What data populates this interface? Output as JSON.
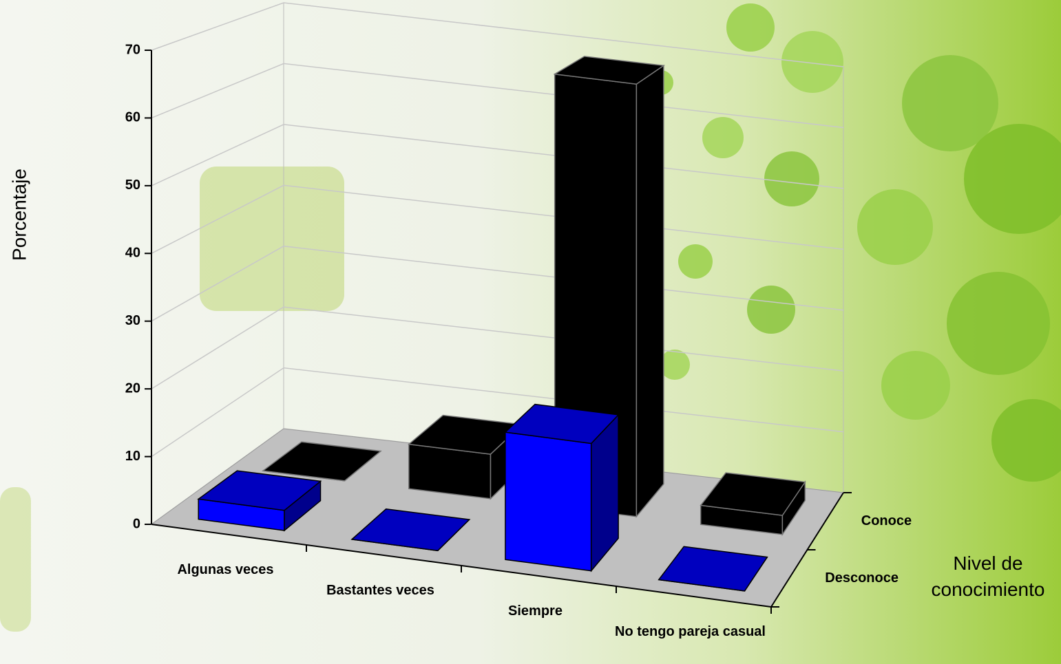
{
  "chart_data": {
    "type": "bar3d",
    "y_label": "Porcentaje",
    "z_label": "Nivel de conocimiento",
    "categories": [
      "Algunas veces",
      "Bastantes veces",
      "Siempre",
      "No tengo pareja casual"
    ],
    "series": [
      {
        "name": "Desconoce",
        "color": "#0000ff",
        "values": [
          3,
          0,
          19,
          0
        ]
      },
      {
        "name": "Conoce",
        "color": "#000000",
        "values": [
          0,
          7,
          68,
          3
        ]
      }
    ],
    "ylim": [
      0,
      70
    ],
    "yticks": [
      0,
      10,
      20,
      30,
      40,
      50,
      60,
      70
    ],
    "grid": true
  }
}
